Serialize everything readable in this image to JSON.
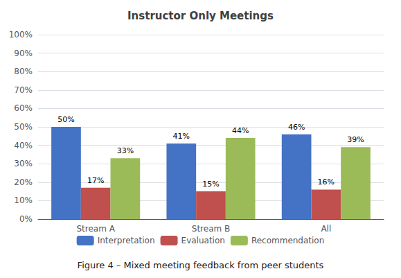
{
  "chart_data": {
    "type": "bar",
    "title": "Instructor Only Meetings",
    "caption": "Figure 4 – Mixed meeting feedback from peer students",
    "categories": [
      "Stream A",
      "Stream B",
      "All"
    ],
    "series": [
      {
        "name": "Interpretation",
        "color": "#4472C4",
        "values": [
          50,
          41,
          46
        ],
        "value_labels": [
          "50%",
          "41%",
          "46%"
        ]
      },
      {
        "name": "Evaluation",
        "color": "#C0504D",
        "values": [
          17,
          15,
          16
        ],
        "value_labels": [
          "17%",
          "15%",
          "16%"
        ]
      },
      {
        "name": "Recommendation",
        "color": "#9BBB59",
        "values": [
          33,
          44,
          39
        ],
        "value_labels": [
          "33%",
          "44%",
          "39%"
        ]
      }
    ],
    "ylim": [
      0,
      100
    ],
    "yticks": [
      {
        "value": 0,
        "label": "0%"
      },
      {
        "value": 10,
        "label": "10%"
      },
      {
        "value": 20,
        "label": "20%"
      },
      {
        "value": 30,
        "label": "30%"
      },
      {
        "value": 40,
        "label": "40%"
      },
      {
        "value": 50,
        "label": "50%"
      },
      {
        "value": 60,
        "label": "60%"
      },
      {
        "value": 70,
        "label": "70%"
      },
      {
        "value": 80,
        "label": "80%"
      },
      {
        "value": 90,
        "label": "90%"
      },
      {
        "value": 100,
        "label": "100%"
      }
    ],
    "grid": true,
    "legend": "bottom",
    "data_labels": true
  }
}
